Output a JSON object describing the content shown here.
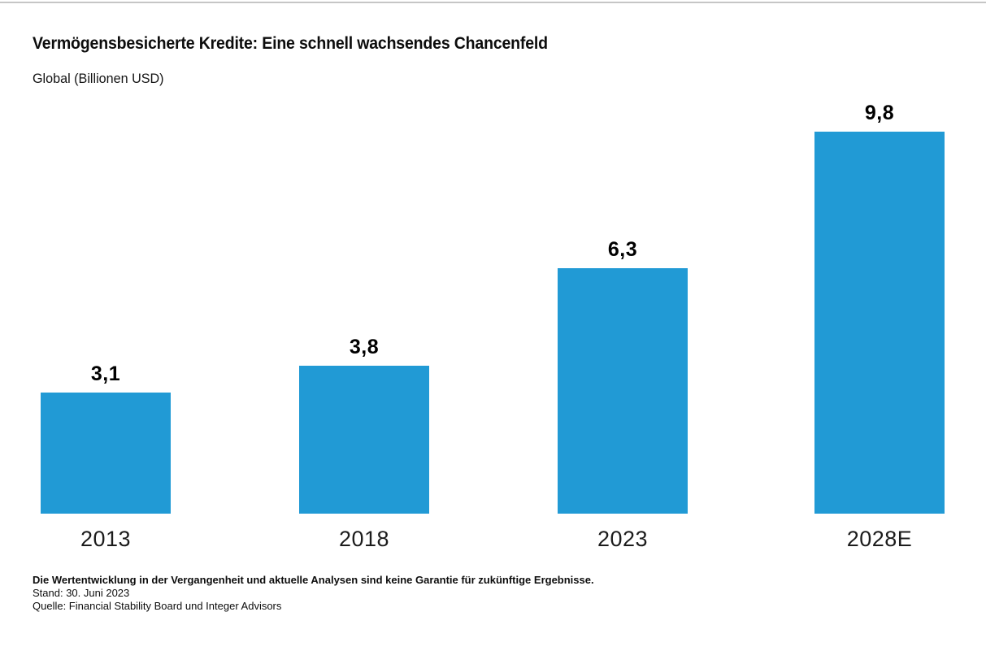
{
  "page": {
    "background": "#ffffff",
    "top_rule_color": "#c6c6c6"
  },
  "header": {
    "title": "Vermögensbesicherte Kredite: Eine schnell wachsendes Chancenfeld",
    "subtitle": "Global (Billionen USD)"
  },
  "chart_data": {
    "type": "bar",
    "title": "Vermögensbesicherte Kredite: Eine schnell wachsendes Chancenfeld",
    "subtitle": "Global (Billionen USD)",
    "categories": [
      "2013",
      "2018",
      "2023",
      "2028E"
    ],
    "values": [
      3.1,
      3.8,
      6.3,
      9.8
    ],
    "value_labels": [
      "3,1",
      "3,8",
      "6,3",
      "9,8"
    ],
    "unit": "Billionen USD",
    "bar_color": "#219ad5",
    "ylim": [
      0,
      10
    ],
    "grid": false,
    "legend": false,
    "value_labels_position": "above-bars",
    "axis_lines": "none"
  },
  "footer": {
    "disclaimer": "Die Wertentwicklung in der Vergangenheit und aktuelle Analysen sind keine Garantie für zukünftige Ergebnisse.",
    "as_of": "Stand: 30. Juni 2023",
    "source": "Quelle: Financial Stability Board und Integer Advisors"
  }
}
